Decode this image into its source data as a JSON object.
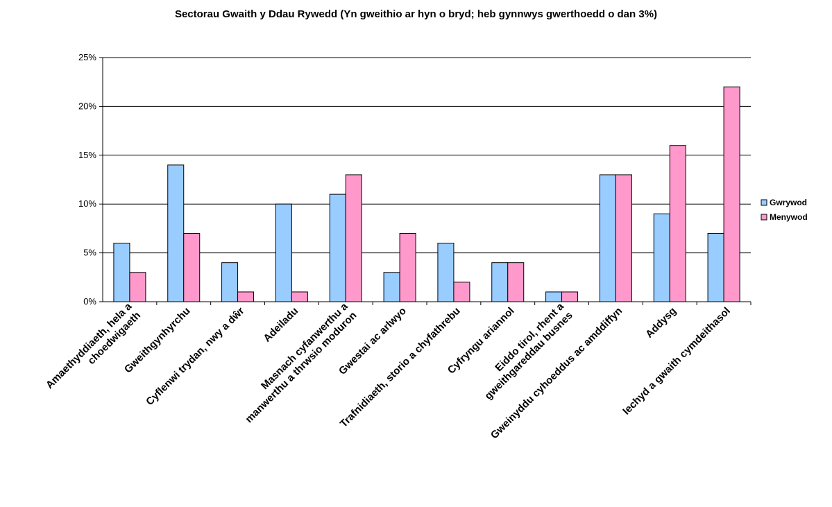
{
  "chart_data": {
    "type": "bar",
    "title": "Sectorau Gwaith y Ddau Rywedd (Yn gweithio ar hyn o bryd; heb gynnwys gwerthoedd o dan 3%)",
    "xlabel": "",
    "ylabel": "",
    "ylim": [
      0,
      25
    ],
    "yticks": [
      "0%",
      "5%",
      "10%",
      "15%",
      "20%",
      "25%"
    ],
    "ytick_values": [
      0,
      5,
      10,
      15,
      20,
      25
    ],
    "grid": true,
    "legend_position": "right",
    "categories": [
      "Amaethyddiaeth, hela a|choedwigaeth",
      "Gweithgynhyrchu",
      "Cyflenwi trydan, nwy a dŵr",
      "Adeiladu",
      "Masnach cyfanwerthu a|manwerthu a thrwsio moduron",
      "Gwestai ac arlwyo",
      "Trafnidiaeth, storio a chyfathrebu",
      "Cyfryngu ariannol",
      "Eiddo tirol, rhent a|gweithgareddau busnes",
      "Gweinyddu cyhoeddus ac amddiffyn",
      "Addysg",
      "Iechyd a gwaith cymdeithasol"
    ],
    "series": [
      {
        "name": "Gwrywod",
        "color": "#99ccff",
        "values": [
          6,
          14,
          4,
          10,
          11,
          3,
          6,
          4,
          1,
          13,
          9,
          7
        ]
      },
      {
        "name": "Menywod",
        "color": "#ff99cc",
        "values": [
          3,
          7,
          1,
          1,
          13,
          7,
          2,
          4,
          1,
          13,
          16,
          22
        ]
      }
    ]
  }
}
